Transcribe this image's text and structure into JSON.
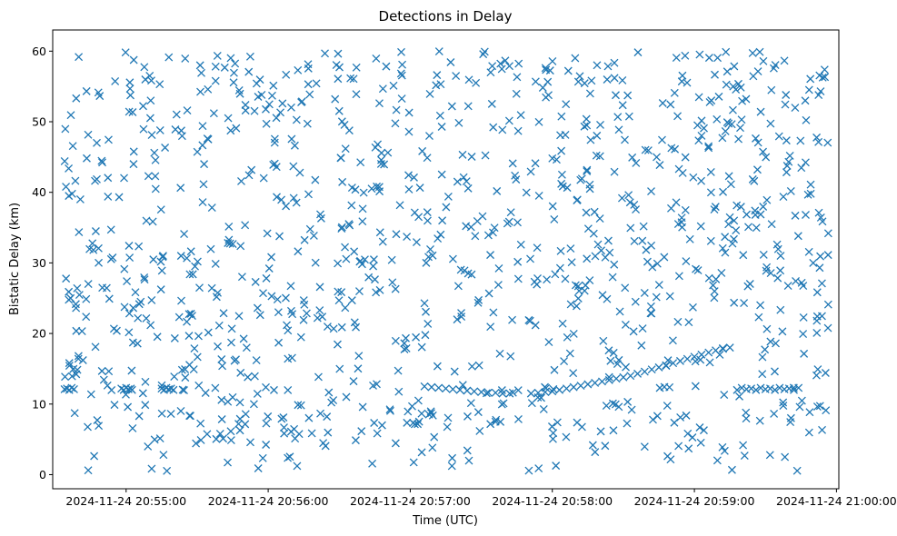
{
  "chart_data": {
    "type": "scatter",
    "title": "Detections in Delay",
    "xlabel": "Time (UTC)",
    "ylabel": "Bistatic Delay (km)",
    "marker": "x",
    "marker_color": "#1f77b4",
    "x_unit": "seconds after 2024-11-24 20:54:00",
    "xlim": [
      29,
      361
    ],
    "ylim": [
      -2,
      63
    ],
    "x_ticks": [
      {
        "value": 60,
        "label": "2024-11-24 20:55:00"
      },
      {
        "value": 120,
        "label": "2024-11-24 20:56:00"
      },
      {
        "value": 180,
        "label": "2024-11-24 20:57:00"
      },
      {
        "value": 240,
        "label": "2024-11-24 20:58:00"
      },
      {
        "value": 300,
        "label": "2024-11-24 20:59:00"
      },
      {
        "value": 360,
        "label": "2024-11-24 21:00:00"
      }
    ],
    "y_ticks": [
      0,
      10,
      20,
      30,
      40,
      50,
      60
    ],
    "target_track": {
      "x": [
        34,
        35,
        36,
        37,
        38,
        58,
        59,
        60,
        61,
        62,
        62.5,
        75,
        76,
        77,
        78,
        79,
        80,
        186,
        189,
        192,
        195,
        198,
        201,
        204,
        207,
        210,
        213,
        216,
        219,
        222,
        231,
        234,
        237,
        240,
        243,
        246,
        249,
        252,
        255,
        258,
        261,
        264,
        267,
        270,
        273,
        276,
        279,
        282,
        285,
        288,
        291,
        294,
        297,
        300,
        303,
        306,
        309,
        312,
        315,
        318,
        320,
        322,
        324,
        326,
        328,
        330,
        332,
        334,
        336,
        338,
        340,
        342,
        344
      ],
      "y": [
        12.1,
        12.2,
        12.0,
        12.3,
        12.1,
        12.2,
        12.0,
        12.3,
        12.1,
        12.2,
        12.0,
        12.2,
        12.0,
        12.3,
        12.1,
        12.2,
        12.0,
        12.5,
        12.4,
        12.3,
        12.2,
        12.1,
        12.0,
        11.9,
        11.8,
        11.7,
        11.6,
        11.6,
        11.5,
        11.5,
        11.5,
        11.6,
        11.7,
        11.8,
        12.0,
        12.2,
        12.4,
        12.6,
        12.8,
        13.0,
        13.2,
        13.4,
        13.6,
        13.8,
        14.0,
        14.3,
        14.6,
        14.9,
        15.2,
        15.5,
        15.8,
        16.1,
        16.4,
        16.7,
        17.0,
        17.3,
        17.6,
        17.9,
        18.0,
        12.0,
        12.3,
        12.1,
        12.2,
        12.0,
        12.3,
        12.1,
        12.2,
        12.0,
        12.3,
        12.1,
        12.2,
        12.0,
        12.3
      ]
    },
    "clutter": {
      "count": 1100,
      "x_range": [
        34,
        357
      ],
      "y_range": [
        0.5,
        60
      ],
      "random_seed": 20241124
    }
  }
}
